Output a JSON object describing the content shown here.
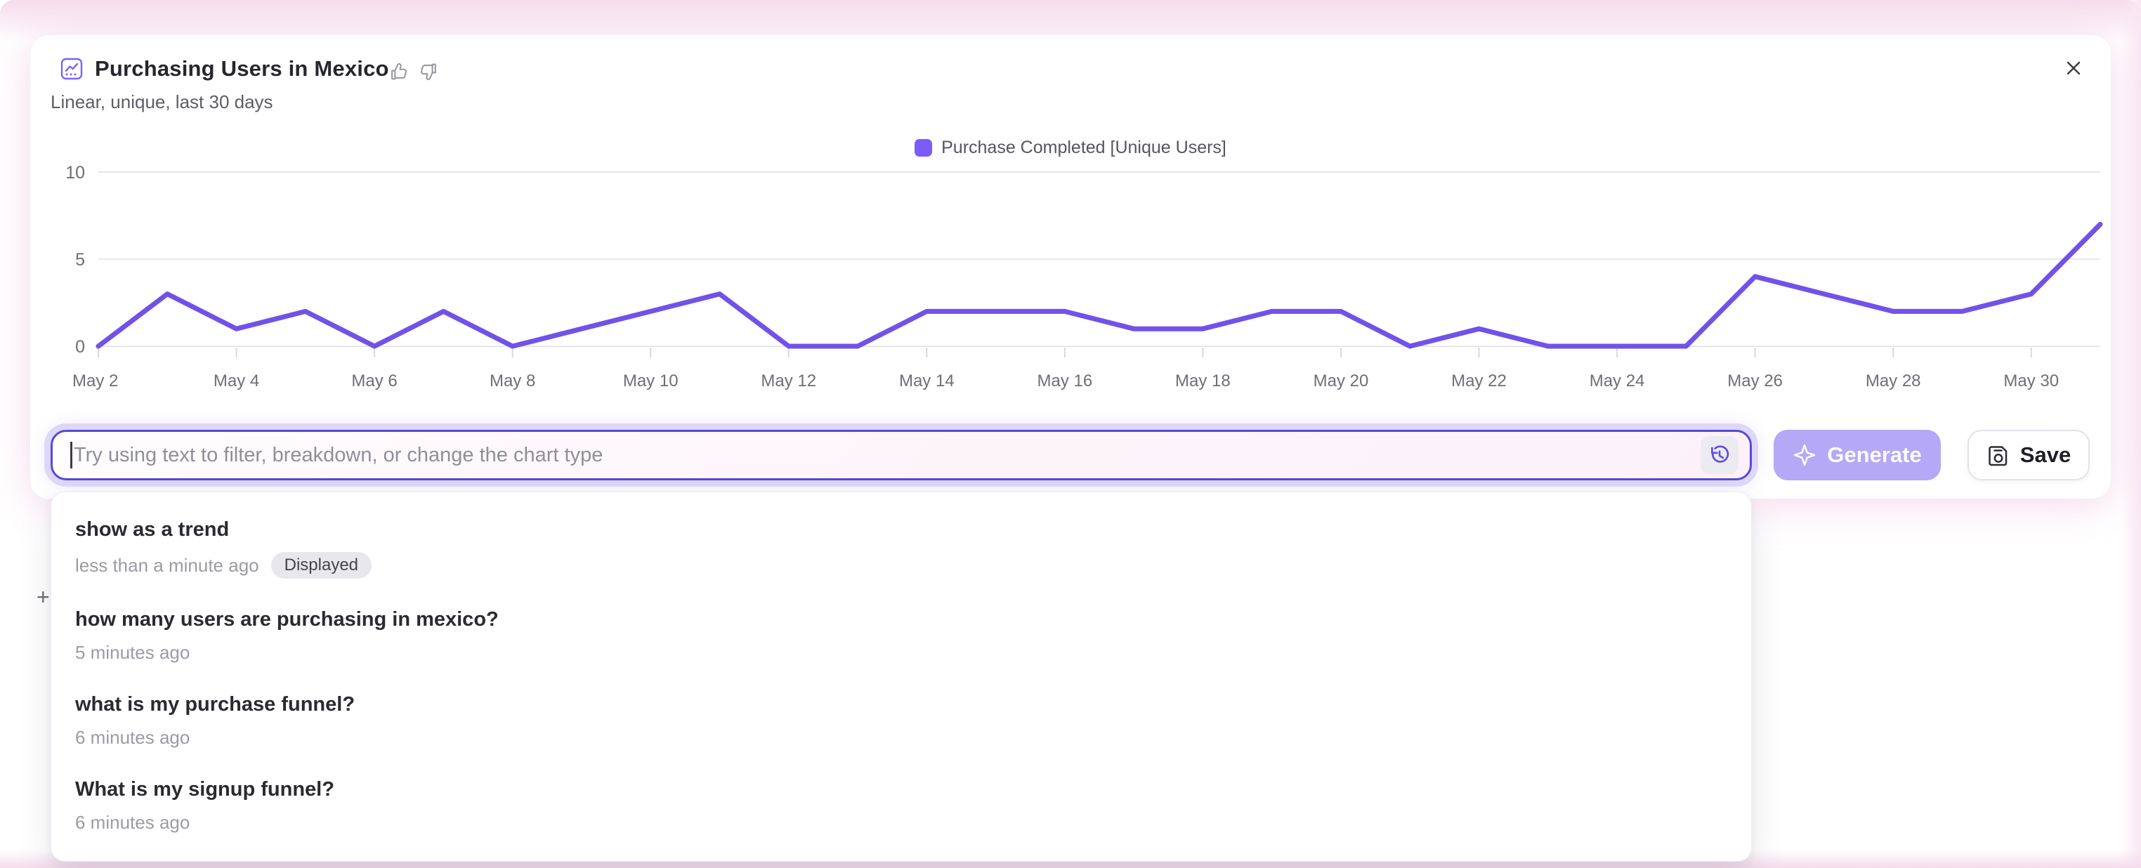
{
  "header": {
    "title": "Purchasing Users in Mexico",
    "subtitle": "Linear, unique, last 30 days"
  },
  "legend": {
    "label": "Purchase Completed [Unique Users]",
    "swatch_color": "#7b5cf8"
  },
  "chart_data": {
    "type": "line",
    "title": "Purchasing Users in Mexico",
    "categories": [
      "May 2",
      "May 3",
      "May 4",
      "May 5",
      "May 6",
      "May 7",
      "May 8",
      "May 9",
      "May 10",
      "May 11",
      "May 12",
      "May 13",
      "May 14",
      "May 15",
      "May 16",
      "May 17",
      "May 18",
      "May 19",
      "May 20",
      "May 21",
      "May 22",
      "May 23",
      "May 24",
      "May 25",
      "May 26",
      "May 27",
      "May 28",
      "May 29",
      "May 30",
      "May 31"
    ],
    "series": [
      {
        "name": "Purchase Completed [Unique Users]",
        "values": [
          0,
          3,
          1,
          2,
          0,
          2,
          0,
          1,
          2,
          3,
          0,
          0,
          2,
          2,
          2,
          1,
          1,
          2,
          2,
          0,
          1,
          0,
          0,
          0,
          4,
          3,
          2,
          2,
          3,
          7
        ]
      }
    ],
    "xlabel": "",
    "ylabel": "",
    "ylim": [
      0,
      10
    ],
    "y_ticks": [
      0,
      5,
      10
    ],
    "x_tick_labels": [
      "May 2",
      "May 4",
      "May 6",
      "May 8",
      "May 10",
      "May 12",
      "May 14",
      "May 16",
      "May 18",
      "May 20",
      "May 22",
      "May 24",
      "May 26",
      "May 28",
      "May 30"
    ],
    "grid": "horizontal",
    "legend_position": "top-center",
    "line_color": "#7152e9",
    "grid_color": "#e8e8ec",
    "axis_label_color": "#6e6e76"
  },
  "prompt": {
    "placeholder": "Try using text to filter, breakdown, or change the chart type"
  },
  "actions": {
    "generate_label": "Generate",
    "save_label": "Save"
  },
  "history": [
    {
      "query": "show as a trend",
      "time": "less than a minute ago",
      "badge": "Displayed"
    },
    {
      "query": "how many users are purchasing in mexico?",
      "time": "5 minutes ago"
    },
    {
      "query": "what is my purchase funnel?",
      "time": "6 minutes ago"
    },
    {
      "query": "What is my signup funnel?",
      "time": "6 minutes ago"
    }
  ],
  "artifacts": {
    "plus": "+"
  }
}
